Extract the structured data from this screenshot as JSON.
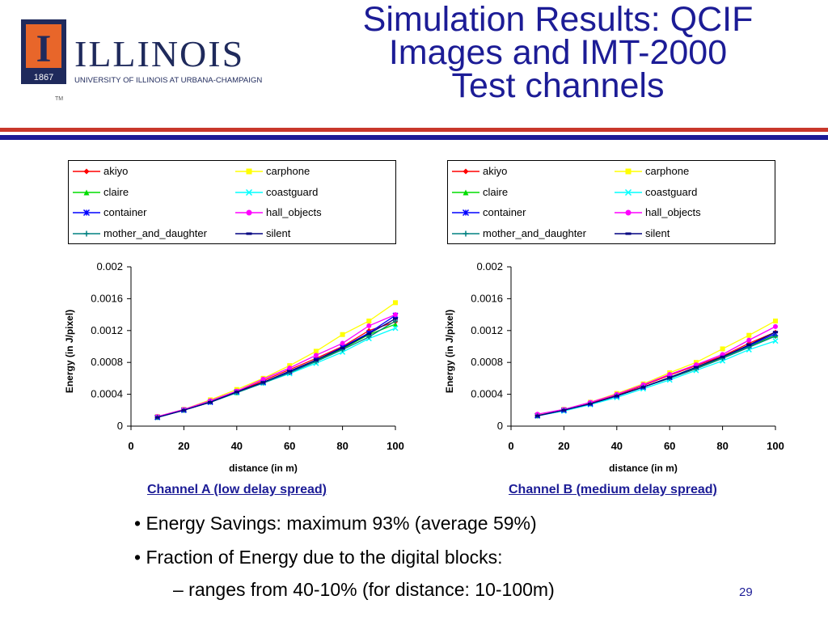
{
  "slide": {
    "title_lines": [
      "Simulation Results: QCIF",
      "Images and IMT-2000",
      "Test channels"
    ],
    "page_number": "29"
  },
  "logo": {
    "wordmark": "ILLINOIS",
    "subtitle": "UNIVERSITY OF ILLINOIS AT URBANA-CHAMPAIGN",
    "year": "1867",
    "mark": "I",
    "tm": "TM"
  },
  "colors": {
    "title": "#1c1c96",
    "rule_red": "#c8382b",
    "rule_blue": "#1c1c96",
    "logo_orange": "#e8662a",
    "logo_navy": "#1f2a5c"
  },
  "legend": [
    {
      "name": "akiyo",
      "color": "#ff0000",
      "marker": "diamond"
    },
    {
      "name": "carphone",
      "color": "#ffff00",
      "marker": "square"
    },
    {
      "name": "claire",
      "color": "#00dd00",
      "marker": "triangle"
    },
    {
      "name": "coastguard",
      "color": "#00ffff",
      "marker": "x"
    },
    {
      "name": "container",
      "color": "#0000ff",
      "marker": "asterisk"
    },
    {
      "name": "hall_objects",
      "color": "#ff00ff",
      "marker": "circle"
    },
    {
      "name": "mother_and_daughter",
      "color": "#008080",
      "marker": "plus"
    },
    {
      "name": "silent",
      "color": "#000080",
      "marker": "dash"
    }
  ],
  "chart_data": [
    {
      "type": "line",
      "caption": "Channel A (low delay spread)",
      "xlabel": "distance (in m)",
      "ylabel": "Energy (in J/pixel)",
      "xlim": [
        0,
        100
      ],
      "ylim": [
        0,
        0.002
      ],
      "xticks": [
        "0",
        "20",
        "40",
        "60",
        "80",
        "100"
      ],
      "yticks": [
        "0",
        "0.0004",
        "0.0008",
        "0.0012",
        "0.0016",
        "0.002"
      ],
      "legend_position": "top",
      "x": [
        10,
        20,
        30,
        40,
        50,
        60,
        70,
        80,
        90,
        100
      ],
      "series": [
        {
          "name": "akiyo",
          "values": [
            0.00012,
            0.0002,
            0.00031,
            0.00043,
            0.00057,
            0.00071,
            0.00085,
            0.001,
            0.0012,
            0.00131
          ]
        },
        {
          "name": "carphone",
          "values": [
            0.00012,
            0.00021,
            0.00033,
            0.00046,
            0.0006,
            0.00076,
            0.00094,
            0.00115,
            0.00132,
            0.00155
          ]
        },
        {
          "name": "claire",
          "values": [
            0.00011,
            0.0002,
            0.00031,
            0.00042,
            0.00055,
            0.00068,
            0.00082,
            0.00097,
            0.00115,
            0.00128
          ]
        },
        {
          "name": "coastguard",
          "values": [
            0.00011,
            0.0002,
            0.0003,
            0.00042,
            0.00054,
            0.00066,
            0.00079,
            0.00093,
            0.0011,
            0.00123
          ]
        },
        {
          "name": "container",
          "values": [
            0.00011,
            0.0002,
            0.0003,
            0.00043,
            0.00055,
            0.00068,
            0.00083,
            0.00099,
            0.00117,
            0.00139
          ]
        },
        {
          "name": "hall_objects",
          "values": [
            0.00012,
            0.00021,
            0.00032,
            0.00044,
            0.00059,
            0.00073,
            0.00089,
            0.00104,
            0.00126,
            0.0014
          ]
        },
        {
          "name": "mother_and_daughter",
          "values": [
            0.00011,
            0.0002,
            0.0003,
            0.00042,
            0.00054,
            0.00067,
            0.00081,
            0.00096,
            0.00112,
            0.00132
          ]
        },
        {
          "name": "silent",
          "values": [
            0.00011,
            0.0002,
            0.0003,
            0.00043,
            0.00055,
            0.00069,
            0.00083,
            0.00098,
            0.00116,
            0.00135
          ]
        }
      ]
    },
    {
      "type": "line",
      "caption": "Channel B (medium delay spread)",
      "xlabel": "distance (in m)",
      "ylabel": "Energy (in J/pixel)",
      "xlim": [
        0,
        100
      ],
      "ylim": [
        0,
        0.002
      ],
      "xticks": [
        "0",
        "20",
        "40",
        "60",
        "80",
        "100"
      ],
      "yticks": [
        "0",
        "0.0004",
        "0.0008",
        "0.0012",
        "0.0016",
        "0.002"
      ],
      "legend_position": "top",
      "x": [
        10,
        20,
        30,
        40,
        50,
        60,
        70,
        80,
        90,
        100
      ],
      "series": [
        {
          "name": "akiyo",
          "values": [
            0.00014,
            0.0002,
            0.00029,
            0.00039,
            0.00051,
            0.00064,
            0.00076,
            0.00088,
            0.00104,
            0.00118
          ]
        },
        {
          "name": "carphone",
          "values": [
            0.00014,
            0.00021,
            0.0003,
            0.00041,
            0.00053,
            0.00067,
            0.0008,
            0.00097,
            0.00114,
            0.00132
          ]
        },
        {
          "name": "claire",
          "values": [
            0.00013,
            0.0002,
            0.00028,
            0.00038,
            0.00049,
            0.00061,
            0.00073,
            0.00086,
            0.001,
            0.00114
          ]
        },
        {
          "name": "coastguard",
          "values": [
            0.00013,
            0.00019,
            0.00027,
            0.00036,
            0.00047,
            0.00058,
            0.0007,
            0.00082,
            0.00096,
            0.00107
          ]
        },
        {
          "name": "container",
          "values": [
            0.00013,
            0.0002,
            0.00028,
            0.00038,
            0.00049,
            0.00061,
            0.00074,
            0.00087,
            0.00101,
            0.00116
          ]
        },
        {
          "name": "hall_objects",
          "values": [
            0.00015,
            0.00021,
            0.0003,
            0.0004,
            0.00052,
            0.00065,
            0.00077,
            0.0009,
            0.00108,
            0.00125
          ]
        },
        {
          "name": "mother_and_daughter",
          "values": [
            0.00013,
            0.0002,
            0.00028,
            0.00038,
            0.00049,
            0.0006,
            0.00072,
            0.00085,
            0.00099,
            0.00113
          ]
        },
        {
          "name": "silent",
          "values": [
            0.00013,
            0.0002,
            0.00028,
            0.00038,
            0.00049,
            0.00061,
            0.00074,
            0.00087,
            0.00102,
            0.00118
          ]
        }
      ]
    }
  ],
  "bullets": [
    "• Energy Savings: maximum 93% (average 59%)",
    "• Fraction of Energy due to the digital blocks:",
    "– ranges from 40-10% (for distance: 10-100m)"
  ]
}
